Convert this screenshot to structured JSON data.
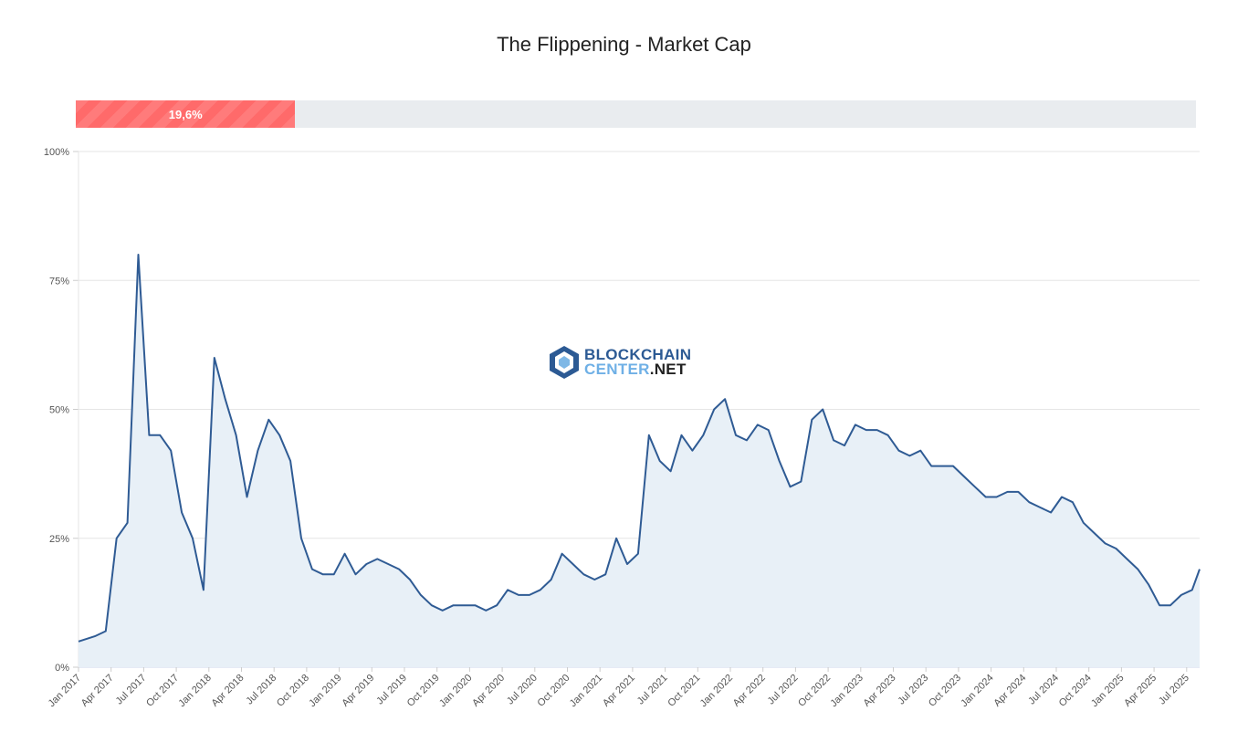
{
  "chart_data": {
    "type": "area",
    "title": "The Flippening - Market Cap",
    "progress": {
      "value": 19.6,
      "label": "19,6%",
      "color": "#ff6b6b"
    },
    "watermark": {
      "line1": "BLOCKCHAIN",
      "line2a": "CENTER",
      "line2b": ".NET"
    },
    "y_ticks": [
      "0%",
      "25%",
      "50%",
      "75%",
      "100%"
    ],
    "ylim": [
      0,
      100
    ],
    "x_ticks": [
      "Jan 2017",
      "Apr 2017",
      "Jul 2017",
      "Oct 2017",
      "Jan 2018",
      "Apr 2018",
      "Jul 2018",
      "Oct 2018",
      "Jan 2019",
      "Apr 2019",
      "Jul 2019",
      "Oct 2019",
      "Jan 2020",
      "Apr 2020",
      "Jul 2020",
      "Oct 2020",
      "Jan 2021",
      "Apr 2021",
      "Jul 2021",
      "Oct 2021",
      "Jan 2022",
      "Apr 2022",
      "Jul 2022",
      "Oct 2022",
      "Jan 2023",
      "Apr 2023",
      "Jul 2023",
      "Oct 2023",
      "Jan 2024",
      "Apr 2024",
      "Jul 2024",
      "Oct 2024",
      "Jan 2025",
      "Apr 2025",
      "Jul 2025"
    ],
    "line_color": "#2f5b94",
    "fill_color": "#e8f0f7",
    "grid": true,
    "x_start": "2017-01",
    "values": [
      5,
      6,
      7,
      25,
      28,
      80,
      45,
      45,
      42,
      30,
      25,
      15,
      60,
      52,
      45,
      33,
      42,
      48,
      45,
      40,
      25,
      19,
      18,
      18,
      22,
      18,
      20,
      21,
      20,
      19,
      17,
      14,
      12,
      11,
      12,
      12,
      12,
      11,
      12,
      15,
      14,
      14,
      15,
      17,
      22,
      20,
      18,
      17,
      18,
      25,
      20,
      22,
      45,
      40,
      38,
      45,
      42,
      45,
      50,
      52,
      45,
      44,
      47,
      46,
      40,
      35,
      36,
      48,
      50,
      44,
      43,
      47,
      46,
      46,
      45,
      42,
      41,
      42,
      39,
      39,
      39,
      37,
      35,
      33,
      33,
      34,
      34,
      32,
      31,
      30,
      33,
      32,
      28,
      26,
      24,
      23,
      21,
      19,
      16,
      12,
      12,
      14,
      15,
      19
    ]
  }
}
